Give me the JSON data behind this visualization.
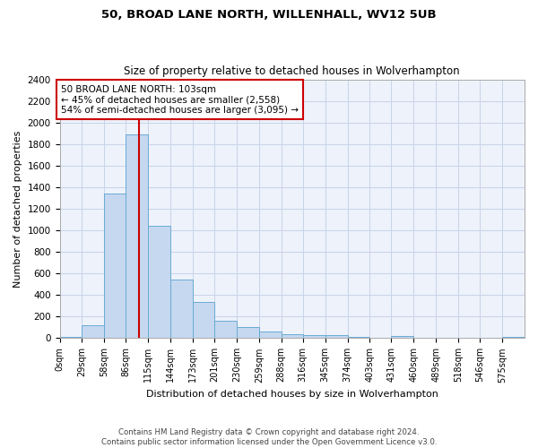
{
  "title": "50, BROAD LANE NORTH, WILLENHALL, WV12 5UB",
  "subtitle": "Size of property relative to detached houses in Wolverhampton",
  "xlabel": "Distribution of detached houses by size in Wolverhampton",
  "ylabel": "Number of detached properties",
  "bar_color": "#c5d8f0",
  "bar_edge_color": "#6aaad4",
  "annotation_box_color": "#cc0000",
  "annotation_text": "50 BROAD LANE NORTH: 103sqm\n← 45% of detached houses are smaller (2,558)\n54% of semi-detached houses are larger (3,095) →",
  "property_line_x": 103,
  "property_line_color": "#cc0000",
  "grid_color": "#c8d4e8",
  "background_color": "#edf2fb",
  "footer_text": "Contains HM Land Registry data © Crown copyright and database right 2024.\nContains public sector information licensed under the Open Government Licence v3.0.",
  "bins": [
    0,
    29,
    58,
    86,
    115,
    144,
    173,
    201,
    230,
    259,
    288,
    316,
    345,
    374,
    403,
    431,
    460,
    489,
    518,
    546,
    575,
    604
  ],
  "bin_labels": [
    "0sqm",
    "29sqm",
    "58sqm",
    "86sqm",
    "115sqm",
    "144sqm",
    "173sqm",
    "201sqm",
    "230sqm",
    "259sqm",
    "288sqm",
    "316sqm",
    "345sqm",
    "374sqm",
    "403sqm",
    "431sqm",
    "460sqm",
    "489sqm",
    "518sqm",
    "546sqm",
    "575sqm"
  ],
  "values": [
    15,
    120,
    1340,
    1890,
    1040,
    540,
    335,
    165,
    105,
    60,
    35,
    25,
    25,
    15,
    2,
    20,
    2,
    2,
    2,
    2,
    15
  ],
  "ylim": [
    0,
    2400
  ],
  "yticks": [
    0,
    200,
    400,
    600,
    800,
    1000,
    1200,
    1400,
    1600,
    1800,
    2000,
    2200,
    2400
  ]
}
